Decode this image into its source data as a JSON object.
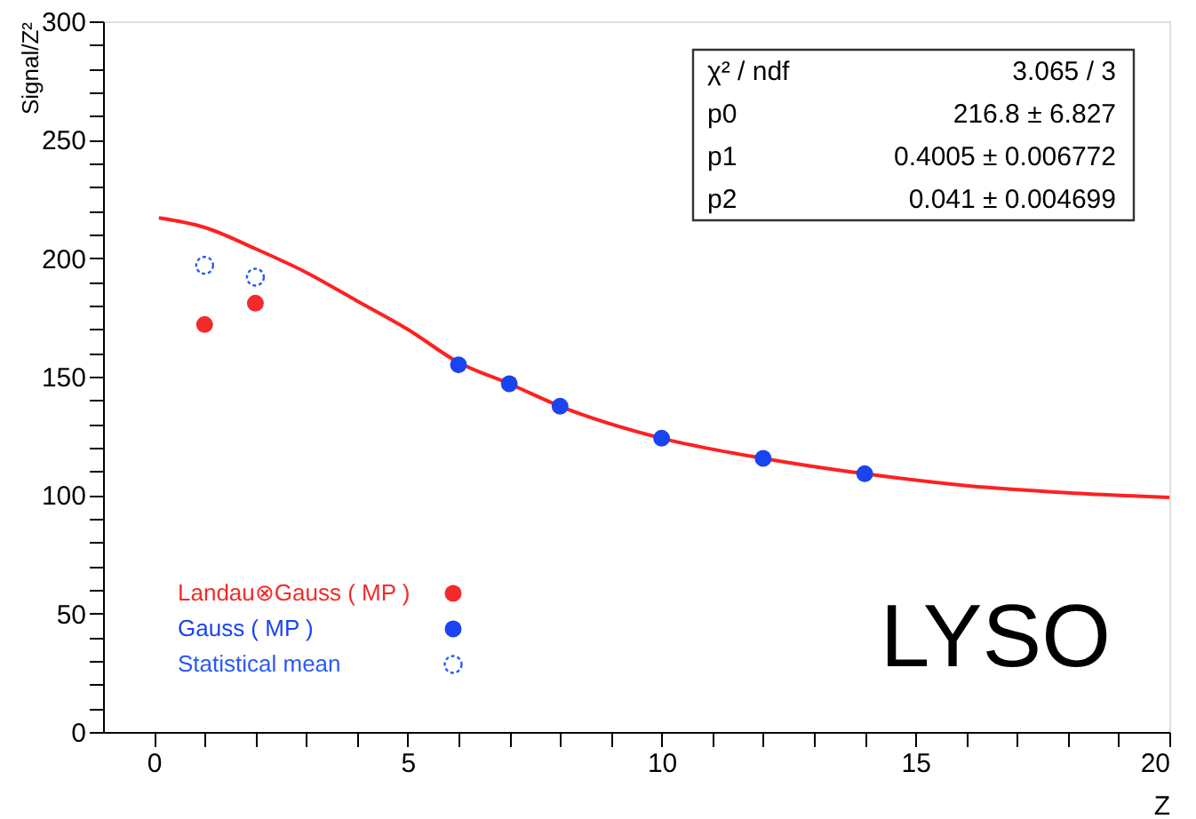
{
  "chart_data": {
    "type": "scatter",
    "xlabel": "Z",
    "ylabel": "Signal/Z²",
    "x": [
      1,
      2,
      6,
      7,
      8,
      10,
      12,
      14
    ],
    "xlim": [
      -1,
      20
    ],
    "ylim": [
      0,
      300
    ],
    "xticks": [
      0,
      {
        "value": 1,
        "label": null
      },
      {
        "value": 2,
        "label": null
      },
      {
        "value": 3,
        "label": null
      },
      {
        "value": 4,
        "label": null
      },
      5,
      {
        "value": 6,
        "label": null
      },
      {
        "value": 7,
        "label": null
      },
      {
        "value": 8,
        "label": null
      },
      {
        "value": 9,
        "label": null
      },
      10,
      {
        "value": 11,
        "label": null
      },
      {
        "value": 12,
        "label": null
      },
      {
        "value": 13,
        "label": null
      },
      {
        "value": 14,
        "label": null
      },
      15,
      {
        "value": 16,
        "label": null
      },
      {
        "value": 17,
        "label": null
      },
      {
        "value": 18,
        "label": null
      },
      {
        "value": 19,
        "label": null
      },
      20
    ],
    "yticks": [
      0,
      {
        "value": 10,
        "label": null
      },
      {
        "value": 20,
        "label": null
      },
      {
        "value": 30,
        "label": null
      },
      {
        "value": 40,
        "label": null
      },
      50,
      {
        "value": 60,
        "label": null
      },
      {
        "value": 70,
        "label": null
      },
      {
        "value": 80,
        "label": null
      },
      {
        "value": 90,
        "label": null
      },
      100,
      {
        "value": 110,
        "label": null
      },
      {
        "value": 120,
        "label": null
      },
      {
        "value": 130,
        "label": null
      },
      {
        "value": 140,
        "label": null
      },
      150,
      {
        "value": 160,
        "label": null
      },
      {
        "value": 170,
        "label": null
      },
      {
        "value": 180,
        "label": null
      },
      {
        "value": 190,
        "label": null
      },
      200,
      {
        "value": 210,
        "label": null
      },
      {
        "value": 220,
        "label": null
      },
      {
        "value": 230,
        "label": null
      },
      {
        "value": 240,
        "label": null
      },
      250,
      {
        "value": 260,
        "label": null
      },
      {
        "value": 270,
        "label": null
      },
      {
        "value": 280,
        "label": null
      },
      {
        "value": 290,
        "label": null
      },
      300
    ],
    "grid": false,
    "legend": "bottom left",
    "marker": "circle",
    "series": [
      {
        "type": "line",
        "color": "#ff2020",
        "marker": "none",
        "line_style": "solid",
        "x": [
          0.1,
          1,
          2,
          3,
          4,
          5,
          6,
          7,
          8,
          10,
          12,
          14,
          16,
          18,
          20
        ],
        "values": [
          217,
          213,
          204,
          194,
          182,
          170,
          156,
          147,
          137.5,
          124,
          115.5,
          109,
          104,
          101,
          99
        ]
      },
      {
        "name": "Landau⊗Gauss ( MP )",
        "color": "#f42a2a",
        "values": [
          172,
          181,
          null,
          null,
          null,
          null,
          null,
          null
        ]
      },
      {
        "name": "Gauss ( MP )",
        "color": "#1a44f0",
        "values": [
          null,
          null,
          155,
          147,
          137.5,
          124,
          115.5,
          109
        ]
      },
      {
        "name": "Statistical mean",
        "color": "#2a5af5",
        "line_style": "dotted",
        "values": [
          197,
          192,
          null,
          null,
          null,
          null,
          null,
          null
        ]
      }
    ],
    "annotations": [
      "χ² / ndf",
      "3.065 / 3",
      "p0",
      "216.8 ± 6.827",
      "p1",
      "0.4005 ± 0.006772",
      "p2",
      "0.041 ± 0.004699",
      "LYSO"
    ]
  }
}
